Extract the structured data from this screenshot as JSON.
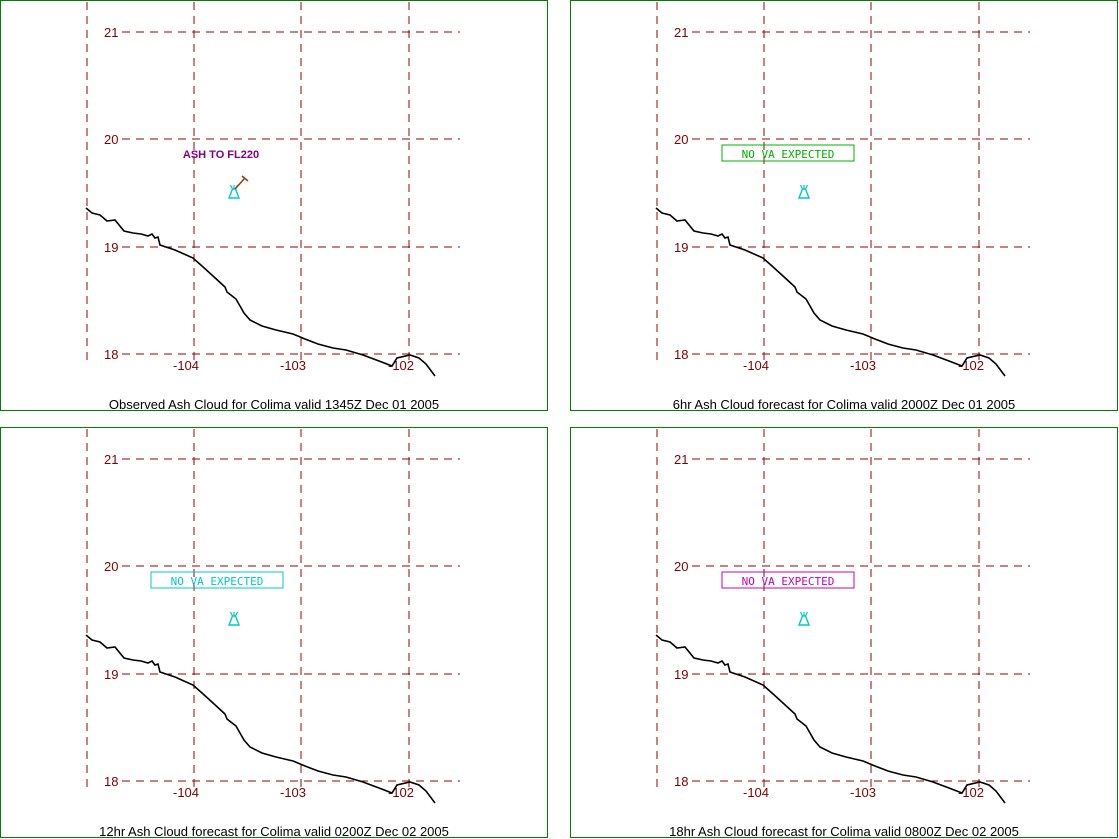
{
  "colors": {
    "frame": "#008000",
    "grid": "#990000",
    "label": "#800000",
    "coast": "#000000",
    "volcano": "#00c8c8",
    "caption": "#000000"
  },
  "axes": {
    "lat_labels": [
      "21",
      "20",
      "19",
      "18"
    ],
    "lon_labels": [
      "-104",
      "-103",
      "-102"
    ]
  },
  "panels": [
    {
      "caption": "Observed Ash Cloud for Colima valid 1345Z Dec 01 2005",
      "annotation": {
        "text": "ASH TO FL220",
        "color": "#800080",
        "boxed": false
      },
      "wind_barb": true
    },
    {
      "caption": "6hr Ash Cloud forecast for Colima valid 2000Z Dec 01 2005",
      "annotation": {
        "text": "NO VA EXPECTED",
        "color": "#00b000",
        "boxed": true
      },
      "wind_barb": false
    },
    {
      "caption": "12hr Ash Cloud forecast for Colima valid 0200Z Dec 02 2005",
      "annotation": {
        "text": "NO VA EXPECTED",
        "color": "#00c8c8",
        "boxed": true
      },
      "wind_barb": false
    },
    {
      "caption": "18hr Ash Cloud forecast for Colima valid 0800Z Dec 02 2005",
      "annotation": {
        "text": "NO VA EXPECTED",
        "color": "#c000c0",
        "boxed": true
      },
      "wind_barb": false
    }
  ]
}
